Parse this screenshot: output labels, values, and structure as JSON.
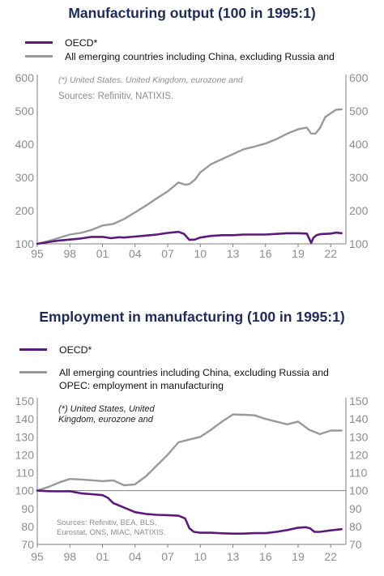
{
  "chart_data": [
    {
      "type": "line",
      "title": "Manufacturing output (100 in 1995:1)",
      "note": "(*) United States, United Kingdom, eurozone and",
      "source": "Sources: Refinitiv, NATIXIS.",
      "x_tick_labels": [
        "95",
        "98",
        "01",
        "04",
        "07",
        "10",
        "13",
        "16",
        "19",
        "22"
      ],
      "x_tick_years": [
        1995,
        1998,
        2001,
        2004,
        2007,
        2010,
        2013,
        2016,
        2019,
        2022
      ],
      "xlim": [
        1995,
        2023.4
      ],
      "ylim": [
        100,
        600
      ],
      "y_ticks": [
        100,
        200,
        300,
        400,
        500,
        600
      ],
      "grid": false,
      "dual_axis": true,
      "legend_position": "top",
      "series": [
        {
          "name": "OECD*",
          "color": "#5b1a7a",
          "x": [
            1995,
            1996,
            1997,
            1998,
            1999,
            2000,
            2001,
            2001.8,
            2002.5,
            2003,
            2004,
            2005,
            2006,
            2007,
            2008,
            2008.5,
            2009,
            2009.5,
            2010,
            2011,
            2012,
            2013,
            2014,
            2015,
            2016,
            2017,
            2018,
            2019,
            2019.8,
            2020.2,
            2020.4,
            2020.7,
            2021,
            2022,
            2022.5,
            2023
          ],
          "y": [
            100,
            105,
            110,
            113,
            116,
            121,
            121,
            117,
            120,
            119,
            122,
            125,
            128,
            133,
            136,
            130,
            112,
            113,
            119,
            124,
            126,
            126,
            128,
            128,
            128,
            130,
            132,
            132,
            131,
            103,
            118,
            126,
            129,
            131,
            134,
            132
          ]
        },
        {
          "name": "All emerging countries including China, excluding Russia and",
          "color": "#999999",
          "x": [
            1995,
            1996,
            1997,
            1998,
            1999,
            2000,
            2001,
            2002,
            2003,
            2004,
            2005,
            2006,
            2007,
            2008,
            2008.6,
            2009,
            2009.5,
            2010,
            2011,
            2012,
            2013,
            2014,
            2015,
            2016,
            2017,
            2018,
            2019,
            2019.8,
            2020.2,
            2020.6,
            2021,
            2021.5,
            2022,
            2022.5,
            2023
          ],
          "y": [
            100,
            108,
            118,
            128,
            133,
            142,
            155,
            160,
            175,
            195,
            215,
            237,
            258,
            285,
            278,
            280,
            293,
            315,
            340,
            355,
            370,
            385,
            393,
            402,
            415,
            432,
            445,
            450,
            432,
            432,
            448,
            482,
            493,
            504,
            505
          ]
        }
      ]
    },
    {
      "type": "line",
      "title": "Employment in manufacturing (100 in 1995:1)",
      "note": "(*) United States, United Kingdom, eurozone and",
      "source": "Sources: Refinitiv, BEA, BLS, Eurostat, ONS, MIAC, NATIXIS.",
      "x_tick_labels": [
        "95",
        "98",
        "01",
        "04",
        "07",
        "10",
        "13",
        "16",
        "19",
        "22"
      ],
      "x_tick_years": [
        1995,
        1998,
        2001,
        2004,
        2007,
        2010,
        2013,
        2016,
        2019,
        2022
      ],
      "xlim": [
        1995,
        2023.4
      ],
      "ylim": [
        70,
        150
      ],
      "y_ticks": [
        70,
        80,
        90,
        100,
        110,
        120,
        130,
        140,
        150
      ],
      "reference_line": 100,
      "grid": false,
      "dual_axis": true,
      "legend_position": "top",
      "series": [
        {
          "name": "OECD*",
          "color": "#5b1a7a",
          "x": [
            1995,
            1996,
            1997,
            1998,
            1999,
            2000,
            2001,
            2001.5,
            2002,
            2003,
            2004,
            2005,
            2006,
            2007,
            2008,
            2008.6,
            2009,
            2009.4,
            2010,
            2011,
            2012,
            2013,
            2014,
            2015,
            2016,
            2017,
            2018,
            2019,
            2019.7,
            2020.1,
            2020.5,
            2021,
            2022,
            2023
          ],
          "y": [
            100,
            99.7,
            99.6,
            99.7,
            98.5,
            98,
            97.5,
            96,
            93,
            90.5,
            88,
            87,
            86.5,
            86.3,
            86,
            84.5,
            79,
            77,
            76.5,
            76.5,
            76.2,
            76,
            76,
            76.3,
            76.3,
            77,
            78,
            79.3,
            79.6,
            79,
            77,
            77,
            77.8,
            78.5
          ]
        },
        {
          "name": "All emerging countries including China, excluding Russia and\nOPEC: employment in manufacturing",
          "color": "#999999",
          "x": [
            1995,
            1996,
            1997,
            1998,
            1999,
            2000,
            2001,
            2002,
            2003,
            2004,
            2005,
            2006,
            2007,
            2008,
            2009,
            2010,
            2011,
            2012,
            2013,
            2014,
            2015,
            2016,
            2017,
            2018,
            2019,
            2020,
            2021,
            2022,
            2023
          ],
          "y": [
            100,
            102,
            104.5,
            106.5,
            106.2,
            105.8,
            105.3,
            105.7,
            103,
            103.5,
            108,
            114,
            120,
            127,
            128.5,
            130,
            134,
            138.5,
            142.5,
            142.3,
            142,
            140,
            138.5,
            137,
            138.5,
            134,
            131.5,
            133.5,
            133.5
          ]
        }
      ]
    }
  ]
}
